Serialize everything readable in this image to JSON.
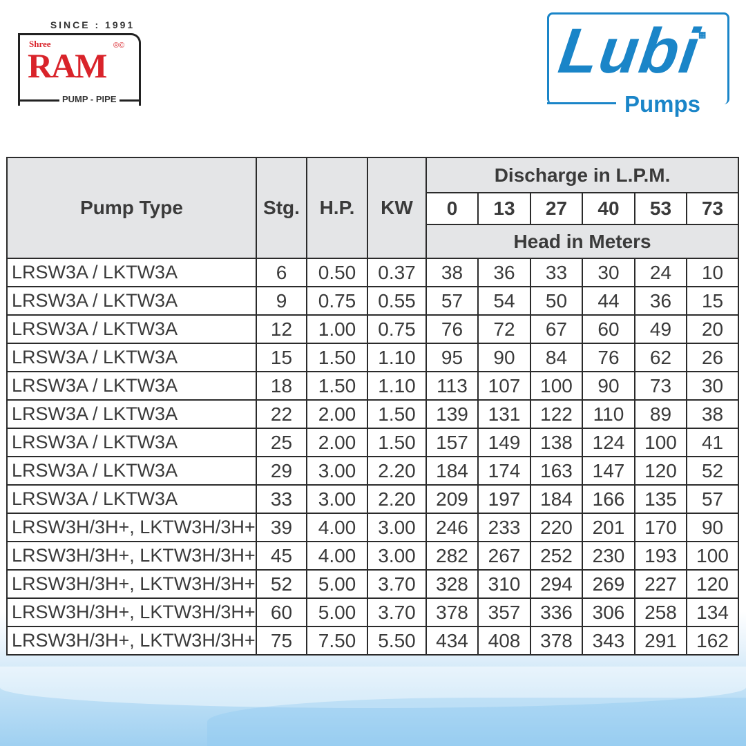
{
  "ram_logo": {
    "since": "SINCE : 1991",
    "shree": "Shree",
    "name": "RAM",
    "reg": "®©",
    "tagline": "PUMP - PIPE",
    "color": "#d9232a"
  },
  "lubi_logo": {
    "name": "Lubi",
    "tagline": "Pumps",
    "color": "#1a85c8"
  },
  "table": {
    "headers": {
      "pump_type": "Pump Type",
      "stg": "Stg.",
      "hp": "H.P.",
      "kw": "KW",
      "discharge": "Discharge in L.P.M.",
      "head": "Head in Meters",
      "lpm": [
        "0",
        "13",
        "27",
        "40",
        "53",
        "73"
      ]
    },
    "rows": [
      [
        "LRSW3A / LKTW3A",
        "6",
        "0.50",
        "0.37",
        "38",
        "36",
        "33",
        "30",
        "24",
        "10"
      ],
      [
        "LRSW3A / LKTW3A",
        "9",
        "0.75",
        "0.55",
        "57",
        "54",
        "50",
        "44",
        "36",
        "15"
      ],
      [
        "LRSW3A / LKTW3A",
        "12",
        "1.00",
        "0.75",
        "76",
        "72",
        "67",
        "60",
        "49",
        "20"
      ],
      [
        "LRSW3A / LKTW3A",
        "15",
        "1.50",
        "1.10",
        "95",
        "90",
        "84",
        "76",
        "62",
        "26"
      ],
      [
        "LRSW3A / LKTW3A",
        "18",
        "1.50",
        "1.10",
        "113",
        "107",
        "100",
        "90",
        "73",
        "30"
      ],
      [
        "LRSW3A / LKTW3A",
        "22",
        "2.00",
        "1.50",
        "139",
        "131",
        "122",
        "110",
        "89",
        "38"
      ],
      [
        "LRSW3A / LKTW3A",
        "25",
        "2.00",
        "1.50",
        "157",
        "149",
        "138",
        "124",
        "100",
        "41"
      ],
      [
        "LRSW3A / LKTW3A",
        "29",
        "3.00",
        "2.20",
        "184",
        "174",
        "163",
        "147",
        "120",
        "52"
      ],
      [
        "LRSW3A / LKTW3A",
        "33",
        "3.00",
        "2.20",
        "209",
        "197",
        "184",
        "166",
        "135",
        "57"
      ],
      [
        "LRSW3H/3H+, LKTW3H/3H+",
        "39",
        "4.00",
        "3.00",
        "246",
        "233",
        "220",
        "201",
        "170",
        "90"
      ],
      [
        "LRSW3H/3H+, LKTW3H/3H+",
        "45",
        "4.00",
        "3.00",
        "282",
        "267",
        "252",
        "230",
        "193",
        "100"
      ],
      [
        "LRSW3H/3H+, LKTW3H/3H+",
        "52",
        "5.00",
        "3.70",
        "328",
        "310",
        "294",
        "269",
        "227",
        "120"
      ],
      [
        "LRSW3H/3H+, LKTW3H/3H+",
        "60",
        "5.00",
        "3.70",
        "378",
        "357",
        "336",
        "306",
        "258",
        "134"
      ],
      [
        "LRSW3H/3H+, LKTW3H/3H+",
        "75",
        "7.50",
        "5.50",
        "434",
        "408",
        "378",
        "343",
        "291",
        "162"
      ]
    ]
  }
}
